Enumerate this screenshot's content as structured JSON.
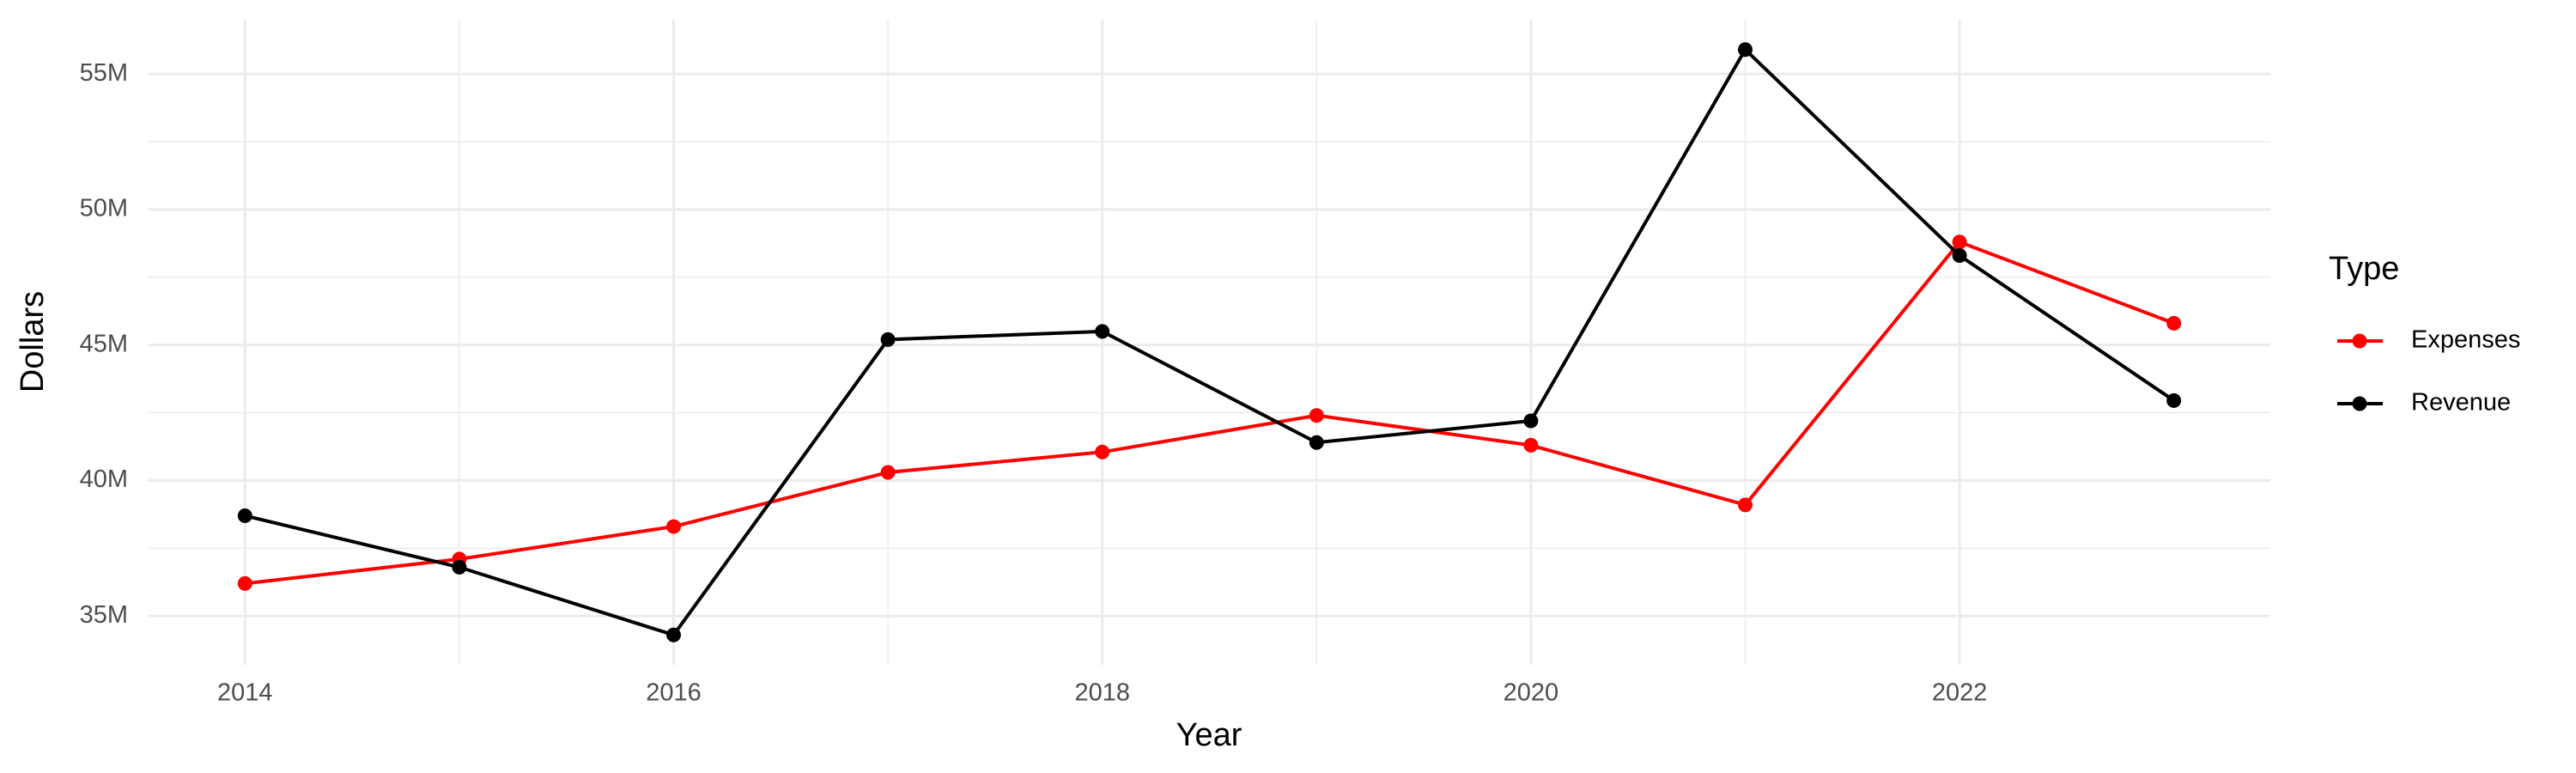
{
  "chart_data": {
    "type": "line",
    "x_label": "Year",
    "y_label": "Dollars",
    "legend_title": "Type",
    "x": [
      2014,
      2015,
      2016,
      2017,
      2018,
      2019,
      2020,
      2021,
      2022,
      2023
    ],
    "series": [
      {
        "name": "Expenses",
        "color": "#ff0000",
        "values": [
          36200000,
          37100000,
          38300000,
          40300000,
          41050000,
          42400000,
          41300000,
          39100000,
          48800000,
          45800000
        ]
      },
      {
        "name": "Revenue",
        "color": "#000000",
        "values": [
          38700000,
          36800000,
          34300000,
          45200000,
          45500000,
          41400000,
          42200000,
          55900000,
          48300000,
          42950000
        ]
      }
    ],
    "xlim": [
      2013.55,
      2023.45
    ],
    "xticks": [
      2014,
      2016,
      2018,
      2020,
      2022
    ],
    "ylim": [
      33200000,
      57000000
    ],
    "yticks": [
      {
        "value": 35000000,
        "label": "35M"
      },
      {
        "value": 40000000,
        "label": "40M"
      },
      {
        "value": 45000000,
        "label": "45M"
      },
      {
        "value": 50000000,
        "label": "50M"
      },
      {
        "value": 55000000,
        "label": "55M"
      }
    ],
    "grid": true,
    "legend_position": "right"
  }
}
